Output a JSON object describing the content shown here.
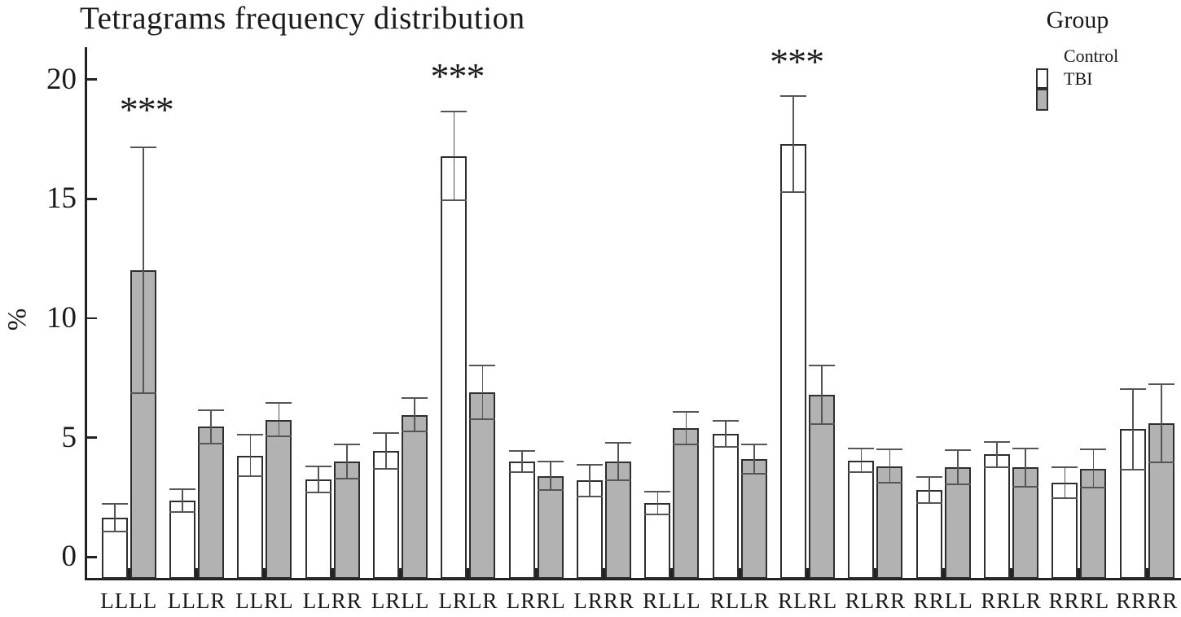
{
  "chart_data": {
    "type": "bar",
    "title": "Tetragrams frequency distribution",
    "ylabel": "%",
    "xlabel": "",
    "yticks": [
      0,
      5,
      10,
      15,
      20
    ],
    "ylim": [
      -1,
      21.3
    ],
    "grid": false,
    "categories": [
      "LLLL",
      "LLLR",
      "LLRL",
      "LLRR",
      "LRLL",
      "LRLR",
      "LRRL",
      "LRRR",
      "RLLL",
      "RLLR",
      "RLRL",
      "RLRR",
      "RRLL",
      "RRLR",
      "RRRL",
      "RRRR"
    ],
    "series": [
      {
        "name": "Control",
        "color": "#ffffff",
        "values": [
          1.65,
          2.35,
          4.25,
          3.25,
          4.45,
          16.8,
          4.0,
          3.2,
          2.25,
          5.15,
          17.3,
          4.05,
          2.8,
          4.3,
          3.1,
          5.35
        ],
        "errors": [
          0.58,
          0.48,
          0.88,
          0.53,
          0.75,
          1.85,
          0.45,
          0.65,
          0.48,
          0.55,
          2.0,
          0.48,
          0.55,
          0.53,
          0.65,
          1.7
        ]
      },
      {
        "name": "TBI",
        "color": "#b2b2b2",
        "values": [
          12.0,
          5.45,
          5.75,
          4.0,
          5.95,
          6.9,
          3.4,
          4.0,
          5.4,
          4.1,
          6.8,
          3.8,
          3.75,
          3.75,
          3.7,
          5.6
        ],
        "errors": [
          5.15,
          0.7,
          0.7,
          0.72,
          0.7,
          1.12,
          0.6,
          0.78,
          0.68,
          0.6,
          1.22,
          0.7,
          0.72,
          0.8,
          0.8,
          1.65
        ]
      }
    ],
    "annotations": [
      {
        "text": "***",
        "category": "LLLL",
        "over": "TBI",
        "y_value": 19.0
      },
      {
        "text": "***",
        "category": "LRLR",
        "over": "Control",
        "y_value": 20.4
      },
      {
        "text": "***",
        "category": "RLRL",
        "over": "Control",
        "y_value": 21.0
      }
    ],
    "legend": {
      "title": "Group",
      "position": "top-right",
      "entries": [
        {
          "label": "Control",
          "color": "#ffffff"
        },
        {
          "label": "TBI",
          "color": "#b2b2b2"
        }
      ]
    }
  },
  "colors": {
    "background": "#ffffff",
    "control_fill": "#ffffff",
    "tbi_fill": "#b2b2b2",
    "bar_border": "#2e2e2e",
    "error_bar": "#555555",
    "axis": "#222222",
    "text": "#1a1a1a"
  }
}
